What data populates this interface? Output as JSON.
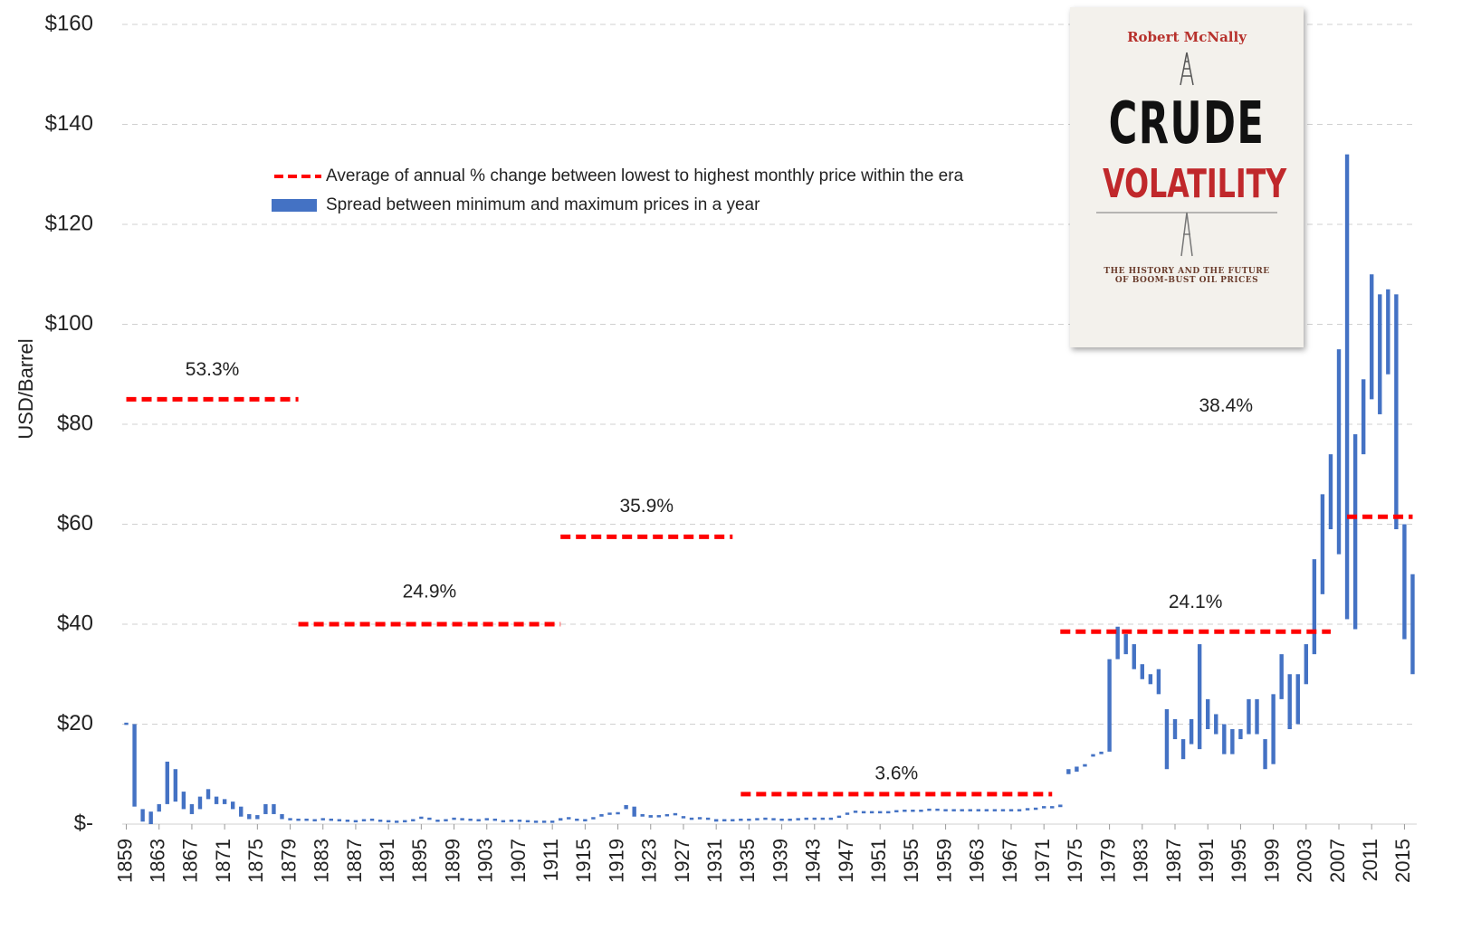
{
  "chart_data": {
    "type": "floating_bar",
    "y_label": "USD/Barrel",
    "x": [
      1859,
      1860,
      1861,
      1862,
      1863,
      1864,
      1865,
      1866,
      1867,
      1868,
      1869,
      1870,
      1871,
      1872,
      1873,
      1874,
      1875,
      1876,
      1877,
      1878,
      1879,
      1880,
      1881,
      1882,
      1883,
      1884,
      1885,
      1886,
      1887,
      1888,
      1889,
      1890,
      1891,
      1892,
      1893,
      1894,
      1895,
      1896,
      1897,
      1898,
      1899,
      1900,
      1901,
      1902,
      1903,
      1904,
      1905,
      1906,
      1907,
      1908,
      1909,
      1910,
      1911,
      1912,
      1913,
      1914,
      1915,
      1916,
      1917,
      1918,
      1919,
      1920,
      1921,
      1922,
      1923,
      1924,
      1925,
      1926,
      1927,
      1928,
      1929,
      1930,
      1931,
      1932,
      1933,
      1934,
      1935,
      1936,
      1937,
      1938,
      1939,
      1940,
      1941,
      1942,
      1943,
      1944,
      1945,
      1946,
      1947,
      1948,
      1949,
      1950,
      1951,
      1952,
      1953,
      1954,
      1955,
      1956,
      1957,
      1958,
      1959,
      1960,
      1961,
      1962,
      1963,
      1964,
      1965,
      1966,
      1967,
      1968,
      1969,
      1970,
      1971,
      1972,
      1973,
      1974,
      1975,
      1976,
      1977,
      1978,
      1979,
      1980,
      1981,
      1982,
      1983,
      1984,
      1985,
      1986,
      1987,
      1988,
      1989,
      1990,
      1991,
      1992,
      1993,
      1994,
      1995,
      1996,
      1997,
      1998,
      1999,
      2000,
      2001,
      2002,
      2003,
      2004,
      2005,
      2006,
      2007,
      2008,
      2009,
      2010,
      2011,
      2012,
      2013,
      2014,
      2015,
      2016
    ],
    "xlim": [
      1858.5,
      2016.5
    ],
    "xticks": [
      1859,
      1863,
      1867,
      1871,
      1875,
      1879,
      1883,
      1887,
      1891,
      1895,
      1899,
      1903,
      1907,
      1911,
      1915,
      1919,
      1923,
      1927,
      1931,
      1935,
      1939,
      1943,
      1947,
      1951,
      1955,
      1959,
      1963,
      1967,
      1971,
      1975,
      1979,
      1983,
      1987,
      1991,
      1995,
      1999,
      2003,
      2007,
      2011,
      2015
    ],
    "ylim": [
      0,
      160
    ],
    "yticks": [
      {
        "value": 0,
        "label": "$-"
      },
      {
        "value": 20,
        "label": "$20"
      },
      {
        "value": 40,
        "label": "$40"
      },
      {
        "value": 60,
        "label": "$60"
      },
      {
        "value": 80,
        "label": "$80"
      },
      {
        "value": 100,
        "label": "$100"
      },
      {
        "value": 120,
        "label": "$120"
      },
      {
        "value": 140,
        "label": "$140"
      },
      {
        "value": 160,
        "label": "$160"
      }
    ],
    "grid": true,
    "series": [
      {
        "name": "Spread between minimum and maximum prices in a year",
        "color": "#4472c4",
        "low": [
          20,
          3.5,
          0.5,
          0,
          2.5,
          4,
          4.5,
          3,
          2,
          3,
          5,
          4,
          4,
          3,
          1.5,
          1,
          1,
          2,
          2,
          1,
          0.8,
          0.8,
          0.8,
          0.7,
          1,
          0.8,
          0.8,
          0.6,
          0.6,
          0.8,
          0.9,
          0.7,
          0.6,
          0.5,
          0.6,
          0.8,
          1.2,
          1,
          0.7,
          0.8,
          1.1,
          1,
          0.9,
          0.8,
          1,
          0.9,
          0.6,
          0.7,
          0.7,
          0.6,
          0.5,
          0.5,
          0.5,
          0.7,
          1,
          0.8,
          0.6,
          1,
          1.5,
          2,
          2,
          3,
          1.5,
          1.5,
          1.3,
          1.4,
          1.6,
          1.9,
          1.2,
          1.1,
          1.2,
          1,
          0.5,
          0.8,
          0.6,
          1,
          1,
          1.1,
          1.2,
          1.1,
          1,
          1,
          1.1,
          1.2,
          1.2,
          1.2,
          1.2,
          1.4,
          1.9,
          2.5,
          2.5,
          2.5,
          2.5,
          2.5,
          2.7,
          2.8,
          2.8,
          2.8,
          3,
          3,
          2.9,
          2.9,
          2.9,
          2.9,
          2.9,
          2.9,
          2.9,
          2.9,
          2.9,
          2.9,
          3.1,
          3.2,
          3.4,
          3.4,
          3.4,
          10,
          10.5,
          11.5,
          13.5,
          14,
          14.5,
          33,
          34,
          31,
          29,
          28,
          26,
          11,
          17,
          13,
          16,
          15,
          19,
          18,
          14,
          14,
          17,
          18,
          18,
          11,
          12,
          25,
          19,
          20,
          28,
          34,
          46,
          59,
          54,
          41,
          39,
          74,
          85,
          82,
          90,
          59,
          37,
          30
        ],
        "high": [
          20.3,
          20,
          3,
          2.5,
          4,
          12.5,
          11,
          6.5,
          4,
          5.5,
          7,
          5.5,
          5,
          4.5,
          3.5,
          2,
          1.8,
          4,
          4,
          2,
          1.2,
          1.1,
          1.1,
          1,
          1.2,
          1.1,
          1,
          0.9,
          0.8,
          1,
          1.1,
          0.9,
          0.8,
          0.7,
          0.8,
          1,
          1.5,
          1.3,
          0.9,
          1,
          1.3,
          1.2,
          1.1,
          1,
          1.2,
          1.1,
          0.8,
          0.9,
          0.9,
          0.8,
          0.7,
          0.7,
          0.7,
          1.2,
          1.4,
          1.1,
          1,
          1.4,
          2,
          2.3,
          2.4,
          3.8,
          3.5,
          2,
          1.8,
          1.8,
          2,
          2.2,
          1.6,
          1.3,
          1.4,
          1.3,
          1,
          1,
          1,
          1.1,
          1.1,
          1.2,
          1.3,
          1.2,
          1.1,
          1.1,
          1.2,
          1.3,
          1.3,
          1.3,
          1.3,
          1.7,
          2.3,
          2.7,
          2.6,
          2.6,
          2.6,
          2.6,
          2.8,
          2.9,
          2.9,
          2.9,
          3.1,
          3.1,
          3,
          3,
          3,
          3,
          3,
          3,
          3,
          3,
          3,
          3,
          3.2,
          3.3,
          3.6,
          3.6,
          3.9,
          11,
          11.5,
          12,
          14,
          14.5,
          33,
          39.5,
          38,
          36,
          32,
          30,
          31,
          23,
          21,
          17,
          21,
          36,
          25,
          22,
          20,
          19,
          19,
          25,
          25,
          17,
          26,
          34,
          30,
          30,
          36,
          53,
          66,
          74,
          95,
          134,
          78,
          89,
          110,
          106,
          107,
          106,
          60,
          50
        ]
      },
      {
        "name": "Average of annual % change between lowest to highest monthly price within the era",
        "color": "#ff0000",
        "style": "dashed",
        "segments": [
          {
            "x": [
              1859,
              1880
            ],
            "value": 85,
            "label": "53.3%"
          },
          {
            "x": [
              1880,
              1912
            ],
            "value": 40,
            "label": "24.9%"
          },
          {
            "x": [
              1912,
              1933
            ],
            "value": 57.5,
            "label": "35.9%"
          },
          {
            "x": [
              1934,
              1972
            ],
            "value": 6,
            "label": "3.6%"
          },
          {
            "x": [
              1973,
              2006
            ],
            "value": 38.5,
            "label": "24.1%"
          },
          {
            "x": [
              2008,
              2016
            ],
            "value": 61.5,
            "label": "38.4%"
          }
        ]
      }
    ],
    "cover": {
      "author": "Robert McNally",
      "title_1": "CRUDE",
      "title_2": "VOLATILITY",
      "subtitle_1": "THE HISTORY AND THE FUTURE",
      "subtitle_2": "OF BOOM-BUST OIL PRICES"
    }
  }
}
